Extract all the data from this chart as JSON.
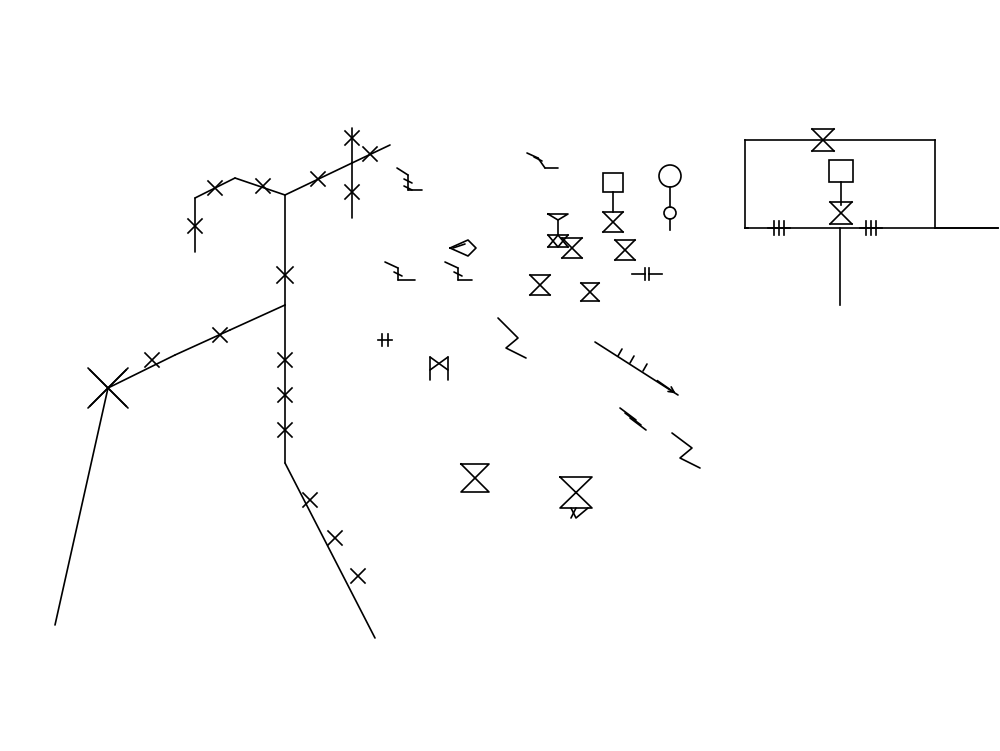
{
  "bg_color": "#ffffff",
  "line_color": "#000000",
  "lw": 1.2
}
